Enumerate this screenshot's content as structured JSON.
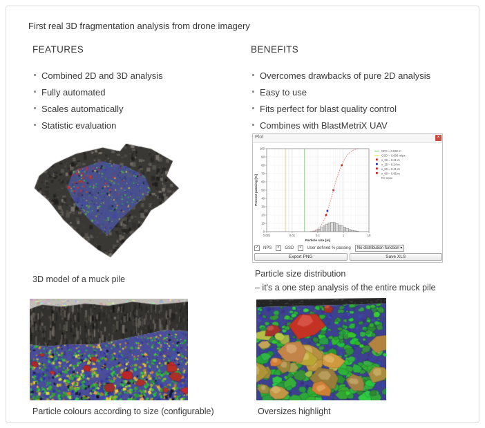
{
  "page": {
    "title": "First real 3D fragmentation analysis from drone imagery"
  },
  "features": {
    "heading": "FEATURES",
    "items": [
      "Combined 2D and 3D analysis",
      "Fully automated",
      "Scales automatically",
      "Statistic evaluation"
    ]
  },
  "benefits": {
    "heading": "BENEFITS",
    "items": [
      "Overcomes drawbacks of pure 2D analysis",
      "Easy to use",
      "Fits perfect for blast quality control",
      "Combines with BlastMetriX UAV"
    ]
  },
  "captions": {
    "muck_pile_3d": "3D model of a muck pile",
    "particle_distribution_line1": "Particle size distribution",
    "particle_distribution_line2": "– it's a one step analysis of the entire muck pile",
    "particle_colours": "Particle colours according to size (configurable)",
    "oversizes": "Oversizes highlight"
  },
  "plot_window": {
    "title": "Plot",
    "close_glyph": "×",
    "controls": {
      "check_glyph": "✓",
      "checkboxes": [
        {
          "label": "NPS",
          "checked": true
        },
        {
          "label": "GSD",
          "checked": true
        },
        {
          "label": "User defined % passing",
          "checked": true
        }
      ],
      "dropdown_value": "No distribution function",
      "dropdown_arrow": "▾",
      "export_button": "Export PNG",
      "save_button": "Save XLS"
    }
  },
  "chart_data": {
    "type": "bar+line",
    "title": "",
    "xlabel": "Particle size [m]",
    "ylabel": "Percent passing [%]",
    "x_scale": "log",
    "xlim": [
      0.001,
      10
    ],
    "ylim": [
      0,
      100
    ],
    "x_ticks": [
      "0.001",
      "0.01",
      "0.1",
      "1",
      "10"
    ],
    "y_tick_step": 10,
    "grid": true,
    "legend_position": "upper right",
    "histogram": {
      "bin_edges": [
        0.05,
        0.063,
        0.08,
        0.1,
        0.125,
        0.16,
        0.2,
        0.25,
        0.315,
        0.4,
        0.5,
        0.63,
        0.8,
        1.0,
        1.25,
        1.6,
        2.0,
        2.5,
        3.15,
        4.0
      ],
      "values_percent": [
        0.3,
        0.8,
        1.8,
        3.2,
        5.0,
        7.0,
        9.0,
        10.5,
        11.5,
        11.0,
        9.5,
        8.0,
        7.0,
        5.5,
        4.0,
        2.6,
        1.6,
        1.0,
        0.7
      ],
      "bar_color": "#dedede",
      "bar_color_alt": "#c9c9c9",
      "bar_border": "#7d7d7d"
    },
    "cumulative": {
      "x": [
        0.05,
        0.063,
        0.08,
        0.1,
        0.125,
        0.16,
        0.2,
        0.25,
        0.315,
        0.4,
        0.5,
        0.63,
        0.8,
        1.0,
        1.25,
        1.6,
        2.0,
        2.5,
        3.15,
        4.0
      ],
      "percent": [
        0,
        0.3,
        1.1,
        2.9,
        6.1,
        11.1,
        18.1,
        27.1,
        37.6,
        49.1,
        60.1,
        69.6,
        77.6,
        84.6,
        90.1,
        94.1,
        96.7,
        98.3,
        99.3,
        100
      ],
      "color": "#e59292",
      "style": "dashed"
    },
    "vlines": [
      {
        "x": 0.0055,
        "color": "#ecec84",
        "label": "GSD"
      },
      {
        "x": 0.03,
        "color": "#a9d9a9",
        "label": "NPS"
      }
    ],
    "markers": [
      {
        "percent": 20,
        "color": "#cc2222"
      },
      {
        "percent": 25,
        "color": "#2233cc"
      },
      {
        "percent": 50,
        "color": "#cc2222"
      },
      {
        "percent": 80,
        "color": "#cc2222"
      }
    ],
    "legend": [
      {
        "swatch": "line",
        "color": "#a9d9a9",
        "label": "NPS = 0.030 m"
      },
      {
        "swatch": "line",
        "color": "#ecec84",
        "label": "GSD = 0.006 m/px"
      },
      {
        "swatch": "square",
        "color": "#cc2222",
        "label": "x_20 = 0.21 m"
      },
      {
        "swatch": "square",
        "color": "#2233cc",
        "label": "x_25 = 0.24 m"
      },
      {
        "swatch": "square",
        "color": "#cc2222",
        "label": "x_50 = 0.41 m"
      },
      {
        "swatch": "square",
        "color": "#cc2222",
        "label": "x_80 = 0.86 m"
      },
      {
        "swatch": "none",
        "color": "",
        "label": "Fit: none"
      }
    ]
  },
  "figures": {
    "muck_pile_3d": {
      "rock_base": "#3a3835",
      "rock_shades": [
        "#1f1e1c",
        "#2c2a27",
        "#3f3c38",
        "#55514b",
        "#6b665f",
        "#7a746c"
      ],
      "surface_base": "#49508e",
      "particle_green": "#3f9e46",
      "particle_blue": "#3a4294",
      "particle_yellow": "#c2a53c",
      "particle_red": "#c23232"
    },
    "particle_colours": {
      "bench_top": "#c2bfb9",
      "cliff_base": "#33312e",
      "cliff_shades": [
        "#191816",
        "#262421",
        "#383531",
        "#4c4843",
        "#605b54",
        "#746e66"
      ],
      "pile_base": "#4a4e99",
      "green": "#2fae3e",
      "yellow": "#d2bc45",
      "ochre": "#b78c33",
      "blue": "#3a3f9e",
      "red": "#b22a2a"
    },
    "oversizes": {
      "top_strip": "#242424",
      "base": "#3d4190",
      "blue": "#3a3f9c",
      "green": "#2fa83c",
      "tan": "#b3913e",
      "khaki": "#bdb34c",
      "red": "#b22e28"
    }
  }
}
